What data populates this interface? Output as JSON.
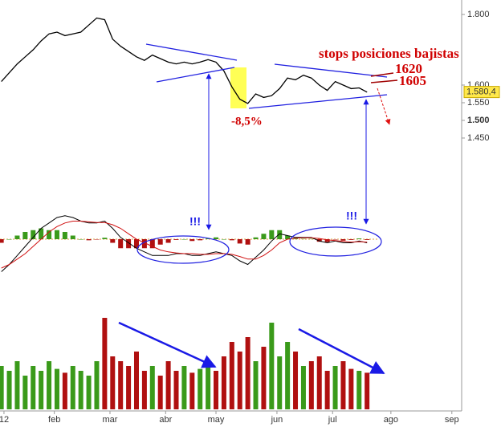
{
  "chart_data": [
    {
      "type": "line",
      "color": "#000000",
      "x": [
        -1,
        2,
        5,
        8,
        11,
        14,
        17,
        20,
        23,
        26,
        29,
        32,
        35,
        38,
        41,
        44,
        47,
        50,
        53,
        56,
        59,
        62,
        65,
        68,
        71,
        74,
        77,
        80,
        83,
        86,
        89,
        92,
        95,
        98,
        101,
        104,
        107,
        110,
        113,
        116,
        119,
        122,
        125,
        128,
        131,
        134,
        137
      ],
      "values": [
        1610,
        1635,
        1660,
        1680,
        1700,
        1725,
        1745,
        1750,
        1740,
        1745,
        1750,
        1770,
        1790,
        1785,
        1730,
        1710,
        1695,
        1680,
        1670,
        1685,
        1675,
        1665,
        1660,
        1665,
        1660,
        1665,
        1672,
        1665,
        1640,
        1595,
        1560,
        1548,
        1575,
        1565,
        1570,
        1590,
        1620,
        1615,
        1628,
        1620,
        1600,
        1585,
        1610,
        1600,
        1590,
        1592,
        1580
      ],
      "xlim": [
        -1.5,
        172.7
      ],
      "xticks": [
        {
          "value": 0,
          "label": "12"
        },
        {
          "value": 19,
          "label": "feb"
        },
        {
          "value": 40,
          "label": "mar"
        },
        {
          "value": 61,
          "label": "abr"
        },
        {
          "value": 80,
          "label": "may"
        },
        {
          "value": 103,
          "label": "jun"
        },
        {
          "value": 124,
          "label": "jul"
        },
        {
          "value": 146,
          "label": "ago"
        },
        {
          "value": 169,
          "label": "sep"
        }
      ],
      "ylim": [
        1409,
        1841
      ],
      "yticks": [
        {
          "value": 1800,
          "label": "1.800"
        },
        {
          "value": 1600,
          "label": "1.600"
        },
        {
          "value": 1550,
          "label": "1.550"
        },
        {
          "value": 1500,
          "label": "1.500",
          "bold": true
        },
        {
          "value": 1450,
          "label": "1.450"
        }
      ],
      "last_price": {
        "value": 1580.4,
        "label": "1.580,4"
      },
      "annotations": {
        "stops": "stops posiciones bajistas",
        "level_high": "1620",
        "level_low": "1605",
        "drop": "-8,5%",
        "signal_left": "!!!",
        "signal_right": "!!!"
      }
    },
    {
      "type": "macd",
      "ylim": [
        -1,
        1
      ],
      "zero_color": "#e0a040",
      "up_color": "#3a9a1a",
      "down_color": "#b01010",
      "series": [
        {
          "color": "#000000",
          "values": [
            -0.9,
            -0.7,
            -0.45,
            -0.2,
            0.05,
            0.3,
            0.45,
            0.6,
            0.65,
            0.6,
            0.5,
            0.45,
            0.45,
            0.5,
            0.3,
            0.05,
            -0.1,
            -0.25,
            -0.35,
            -0.45,
            -0.45,
            -0.45,
            -0.4,
            -0.4,
            -0.45,
            -0.45,
            -0.4,
            -0.35,
            -0.4,
            -0.45,
            -0.6,
            -0.7,
            -0.5,
            -0.3,
            -0.05,
            0.15,
            0.1,
            0.05,
            0.05,
            0.05,
            -0.05,
            -0.1,
            -0.05,
            -0.1,
            -0.1,
            -0.05,
            -0.1
          ]
        },
        {
          "color": "#d01010",
          "values": [
            -0.8,
            -0.7,
            -0.55,
            -0.4,
            -0.2,
            0,
            0.2,
            0.35,
            0.45,
            0.5,
            0.5,
            0.48,
            0.46,
            0.46,
            0.4,
            0.3,
            0.15,
            0,
            -0.1,
            -0.2,
            -0.3,
            -0.35,
            -0.38,
            -0.4,
            -0.4,
            -0.42,
            -0.42,
            -0.4,
            -0.4,
            -0.42,
            -0.48,
            -0.55,
            -0.55,
            -0.45,
            -0.3,
            -0.1,
            0,
            0.03,
            0.04,
            0.04,
            0.02,
            -0.02,
            -0.04,
            -0.06,
            -0.08,
            -0.07,
            -0.08
          ]
        }
      ],
      "histogram": [
        -0.1,
        0,
        0.1,
        0.2,
        0.25,
        0.3,
        0.25,
        0.25,
        0.2,
        0.1,
        0,
        -0.03,
        -0.01,
        0.04,
        -0.1,
        -0.25,
        -0.25,
        -0.25,
        -0.25,
        -0.25,
        -0.15,
        -0.1,
        -0.02,
        0,
        -0.05,
        -0.03,
        0.02,
        0.05,
        0,
        -0.03,
        -0.12,
        -0.15,
        0.05,
        0.15,
        0.25,
        0.25,
        0.1,
        0.02,
        0.01,
        0.01,
        -0.07,
        -0.08,
        -0.01,
        -0.04,
        -0.02,
        0.02,
        -0.02
      ]
    },
    {
      "type": "bar",
      "ylim": [
        0,
        1
      ],
      "up_color": "#3a9a1a",
      "down_color": "#b01010",
      "values": [
        0.45,
        0.4,
        0.5,
        0.35,
        0.45,
        0.4,
        0.5,
        0.42,
        0.38,
        0.45,
        0.4,
        0.35,
        0.5,
        0.95,
        0.55,
        0.5,
        0.45,
        0.6,
        0.4,
        0.45,
        0.35,
        0.5,
        0.4,
        0.45,
        0.38,
        0.42,
        0.5,
        0.4,
        0.55,
        0.7,
        0.6,
        0.75,
        0.5,
        0.65,
        0.9,
        0.55,
        0.7,
        0.6,
        0.45,
        0.5,
        0.55,
        0.4,
        0.45,
        0.5,
        0.42,
        0.4,
        0.38
      ]
    }
  ]
}
